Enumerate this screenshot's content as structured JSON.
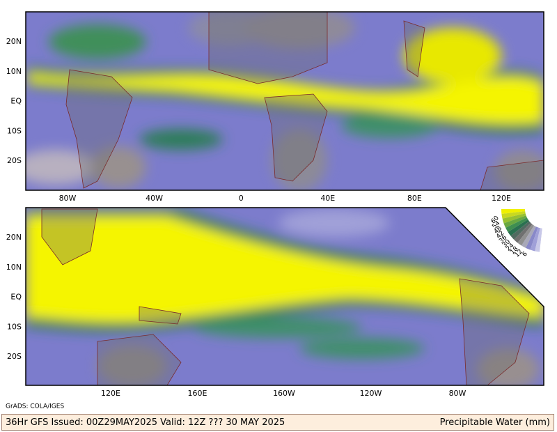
{
  "maps": [
    {
      "lat_labels": [
        "20N",
        "10N",
        "EQ",
        "10S",
        "20S"
      ],
      "lon_labels": [
        "80W",
        "40W",
        "0",
        "40E",
        "80E",
        "120E"
      ]
    },
    {
      "lat_labels": [
        "20N",
        "10N",
        "EQ",
        "10S",
        "20S"
      ],
      "lon_labels": [
        "120E",
        "160E",
        "160W",
        "120W",
        "80W"
      ]
    }
  ],
  "colorbar": {
    "labels": [
      60,
      54,
      48,
      42,
      36,
      30,
      24,
      18,
      12,
      6
    ]
  },
  "credit": "GrADS: COLA/IGES",
  "footer": {
    "left": "36Hr GFS Issued: 00Z29MAY2025 Valid: 12Z ??? 30 MAY 2025",
    "right": "Precipitable Water (mm)"
  }
}
